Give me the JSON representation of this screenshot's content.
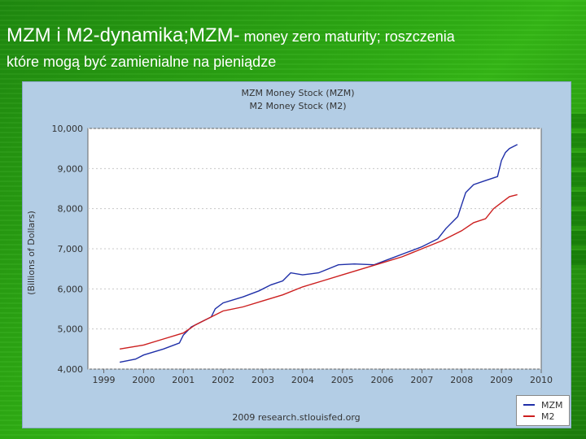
{
  "slide": {
    "title_main": "MZM i M2-dynamika;MZM-",
    "title_tail": " money zero maturity; roszczenia",
    "title_line2": "które mogą być zamienialne na pieniądze"
  },
  "colors": {
    "panel_bg": "#b3cde5",
    "plot_bg": "#ffffff",
    "mzm": "#1f2fa8",
    "m2": "#cc1f1f"
  },
  "chart_data": {
    "type": "line",
    "title_lines": [
      "MZM Money Stock (MZM)",
      "M2 Money Stock (M2)"
    ],
    "ylabel": "(Billions of Dollars)",
    "xlabel": "",
    "xlim": [
      1998.6,
      2010.0
    ],
    "ylim": [
      4000,
      10000
    ],
    "x_ticks": [
      "1999",
      "2000",
      "2001",
      "2002",
      "2003",
      "2004",
      "2005",
      "2006",
      "2007",
      "2008",
      "2009",
      "2010"
    ],
    "y_ticks": [
      "4,000",
      "5,000",
      "6,000",
      "7,000",
      "8,000",
      "9,000",
      "10,000"
    ],
    "source": "2009 research.stlouisfed.org",
    "series": [
      {
        "name": "MZM",
        "x": [
          1999.4,
          1999.8,
          2000.0,
          2000.5,
          2000.9,
          2001.0,
          2001.2,
          2001.5,
          2001.7,
          2001.8,
          2002.0,
          2002.5,
          2002.9,
          2003.2,
          2003.5,
          2003.7,
          2004.0,
          2004.4,
          2004.9,
          2005.3,
          2005.8,
          2006.2,
          2006.6,
          2007.0,
          2007.4,
          2007.6,
          2007.9,
          2008.0,
          2008.1,
          2008.3,
          2008.6,
          2008.9,
          2009.0,
          2009.1,
          2009.2,
          2009.4
        ],
        "values": [
          4170,
          4250,
          4350,
          4500,
          4650,
          4850,
          5050,
          5200,
          5300,
          5500,
          5650,
          5800,
          5950,
          6100,
          6200,
          6400,
          6350,
          6400,
          6600,
          6620,
          6600,
          6750,
          6900,
          7050,
          7250,
          7500,
          7800,
          8100,
          8400,
          8600,
          8700,
          8800,
          9200,
          9400,
          9500,
          9600
        ]
      },
      {
        "name": "M2",
        "x": [
          1999.4,
          2000.0,
          2000.5,
          2001.0,
          2001.3,
          2001.7,
          2002.0,
          2002.5,
          2003.0,
          2003.5,
          2004.0,
          2004.5,
          2005.0,
          2005.5,
          2006.0,
          2006.5,
          2007.0,
          2007.5,
          2008.0,
          2008.3,
          2008.6,
          2008.8,
          2009.0,
          2009.2,
          2009.4
        ],
        "values": [
          4500,
          4600,
          4750,
          4900,
          5100,
          5300,
          5450,
          5550,
          5700,
          5850,
          6050,
          6200,
          6350,
          6500,
          6650,
          6800,
          7000,
          7200,
          7450,
          7650,
          7750,
          8000,
          8150,
          8300,
          8350
        ]
      }
    ],
    "legend": {
      "position": "bottom-right",
      "entries": [
        "MZM",
        "M2"
      ]
    }
  }
}
